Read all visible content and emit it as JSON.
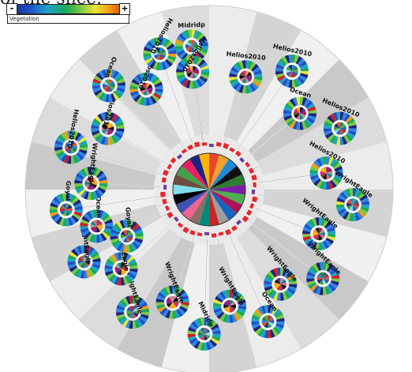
{
  "caption": "of the slice.",
  "legend": {
    "minus": "-",
    "plus": "+",
    "label": "Vegetation",
    "gradient": [
      "#1a237e",
      "#1e4fc9",
      "#1ea2c9",
      "#1aa85a",
      "#7ac943",
      "#e8e533",
      "#f39c12",
      "#d11e1e"
    ]
  },
  "nodes": [
    {
      "label": "Midridp",
      "angle": -97
    },
    {
      "label": "Helios2010",
      "angle": -72
    },
    {
      "label": "Helios2010",
      "angle": -55
    },
    {
      "label": "Ocean",
      "angle": -40
    },
    {
      "label": "Helios2010",
      "angle": -25
    },
    {
      "label": "Helios2010",
      "angle": -8
    },
    {
      "label": "WrightEagle",
      "angle": 6
    },
    {
      "label": "WrightEagle",
      "angle": 22
    },
    {
      "label": "WrightEagle",
      "angle": 38
    },
    {
      "label": "WrightEagle",
      "angle": 53
    },
    {
      "label": "Ocean",
      "angle": 66
    },
    {
      "label": "WrightEagle",
      "angle": 80
    },
    {
      "label": "Midridp",
      "angle": 92
    },
    {
      "label": "WrightEagle",
      "angle": 108
    },
    {
      "label": "WrightEagle",
      "angle": 122
    },
    {
      "label": "WrightEagle",
      "angle": 138
    },
    {
      "label": "WrightEagle",
      "angle": 150
    },
    {
      "label": "Ocean",
      "angle": 162
    },
    {
      "label": "Goyal",
      "angle": 172
    },
    {
      "label": "WrightEagle",
      "angle": 183
    },
    {
      "label": "Helios2010",
      "angle": 197
    },
    {
      "label": "Helios2010",
      "angle": 211
    },
    {
      "label": "Ocean",
      "angle": 226
    },
    {
      "label": "Helios2010",
      "angle": 238
    },
    {
      "label": "Helios2010",
      "angle": 250
    },
    {
      "label": "Helios2010",
      "angle": 262
    },
    {
      "label": "Goyal",
      "angle": 150.5
    }
  ],
  "center_colors": [
    "#e8482a",
    "#f0a030",
    "#1e8ad6",
    "#111111",
    "#2e7d32",
    "#7b1fa2",
    "#4caf50",
    "#ad1457",
    "#1565c0",
    "#9e9e9e",
    "#c62828",
    "#00897b",
    "#8d6e63",
    "#f06292",
    "#3f51b5",
    "#000000",
    "#80deea",
    "#6d4c41",
    "#43a047",
    "#e91e63",
    "#1a237e",
    "#ffb300"
  ],
  "ring_colors": {
    "red": "#e8252a",
    "purple": "#6a3d9a"
  }
}
